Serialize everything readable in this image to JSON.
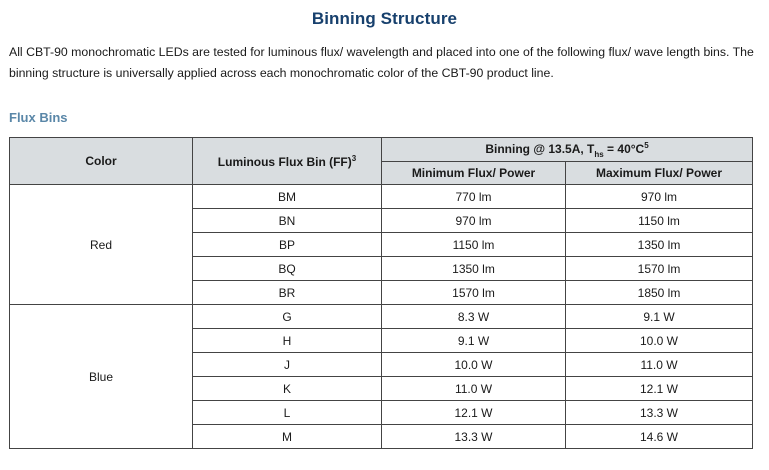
{
  "title": "Binning Structure",
  "intro": "All CBT-90 monochromatic LEDs are tested for luminous flux/ wavelength and placed into one of the following flux/ wave length bins. The binning structure is universally applied across each monochromatic color of the CBT-90 product line.",
  "section_heading": "Flux Bins",
  "table": {
    "header": {
      "color": "Color",
      "flux_bin": "Luminous Flux Bin (FF)",
      "flux_bin_sup": "3",
      "binning_pre": "Binning @ 13.5A, T",
      "binning_sub": "hs",
      "binning_post": " = 40°C",
      "binning_sup": "5",
      "min_label": "Minimum Flux/ Power",
      "max_label": "Maximum Flux/ Power"
    },
    "groups": [
      {
        "color": "Red",
        "rows": [
          {
            "bin": "BM",
            "min": "770 lm",
            "max": "970 lm"
          },
          {
            "bin": "BN",
            "min": "970 lm",
            "max": "1150 lm"
          },
          {
            "bin": "BP",
            "min": "1150 lm",
            "max": "1350 lm"
          },
          {
            "bin": "BQ",
            "min": "1350 lm",
            "max": "1570 lm"
          },
          {
            "bin": "BR",
            "min": "1570 lm",
            "max": "1850 lm"
          }
        ]
      },
      {
        "color": "Blue",
        "rows": [
          {
            "bin": "G",
            "min": "8.3 W",
            "max": "9.1 W"
          },
          {
            "bin": "H",
            "min": "9.1 W",
            "max": "10.0 W"
          },
          {
            "bin": "J",
            "min": "10.0 W",
            "max": "11.0 W"
          },
          {
            "bin": "K",
            "min": "11.0 W",
            "max": "12.1 W"
          },
          {
            "bin": "L",
            "min": "12.1 W",
            "max": "13.3 W"
          },
          {
            "bin": "M",
            "min": "13.3 W",
            "max": "14.6 W"
          }
        ]
      }
    ]
  }
}
